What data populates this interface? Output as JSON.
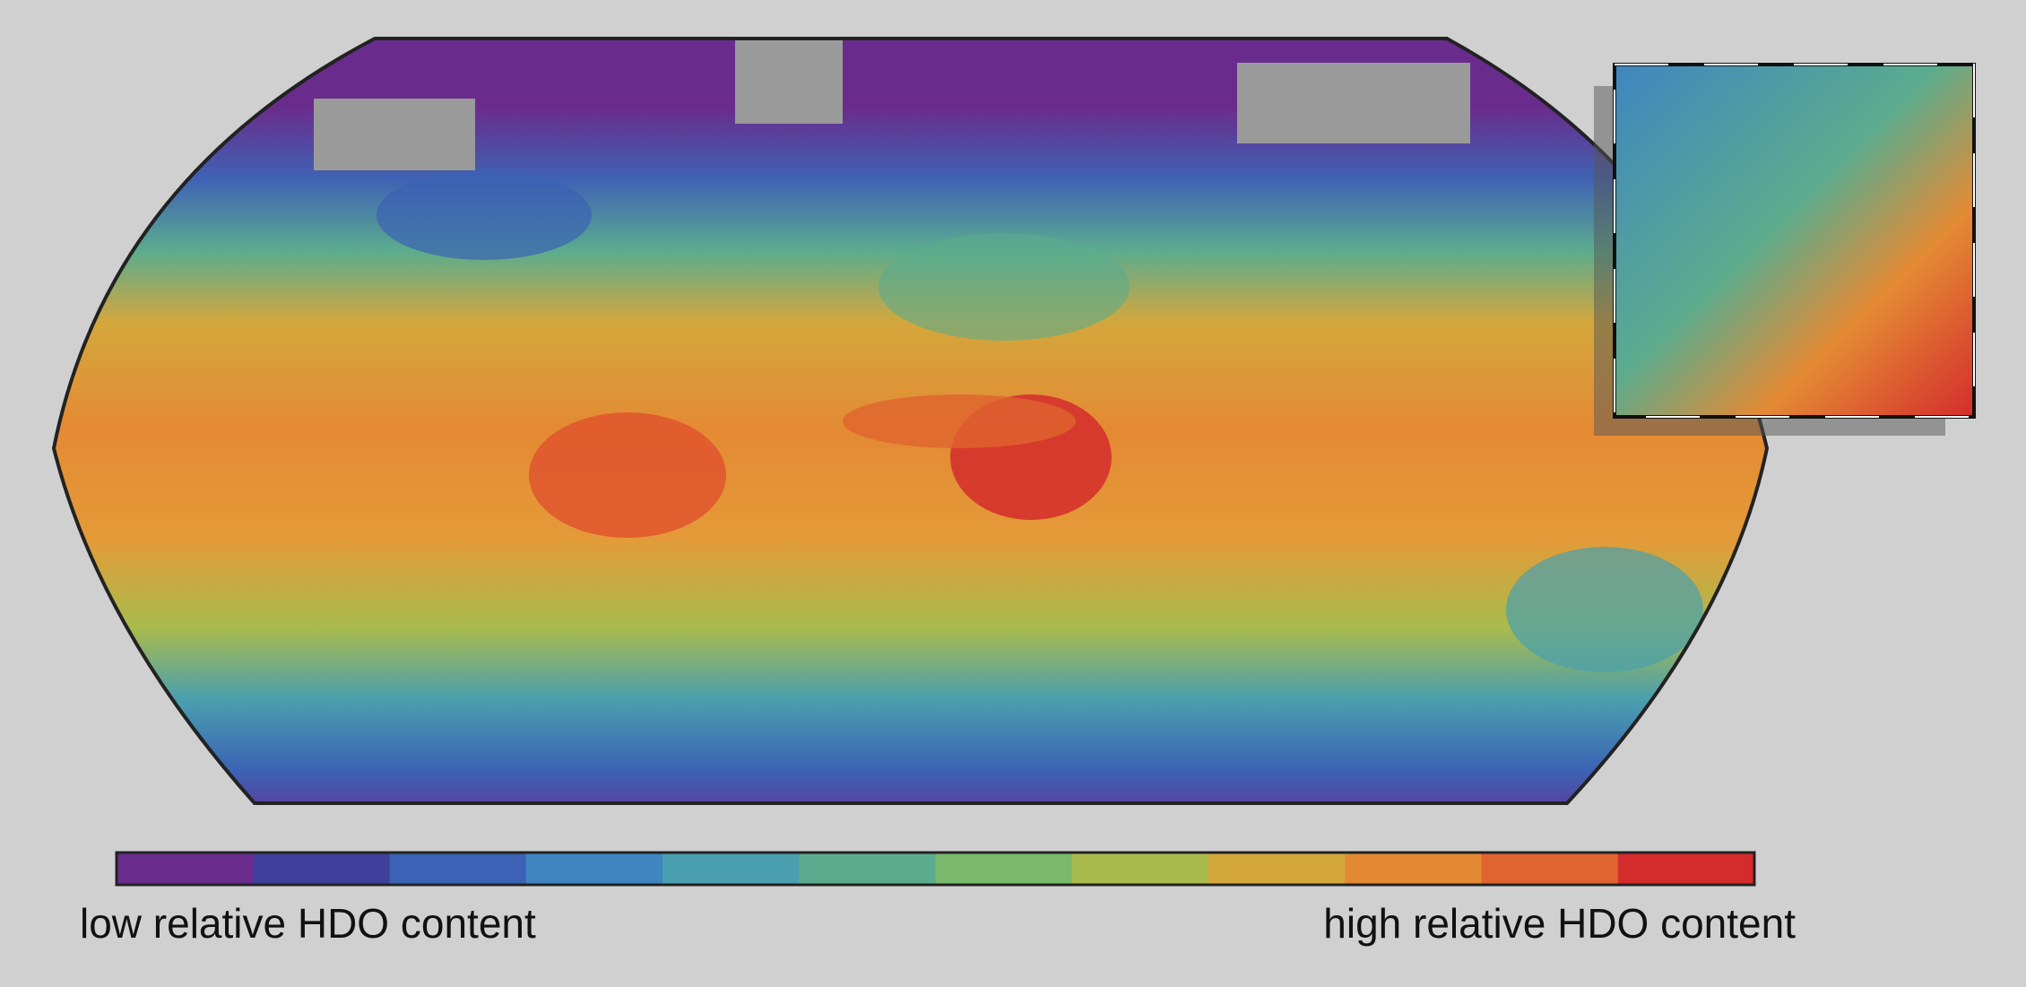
{
  "legend": {
    "low_label": "low relative HDO content",
    "high_label": "high relative HDO content",
    "colors": [
      "#6a2c8c",
      "#3f3f9c",
      "#3b62b4",
      "#3f86c0",
      "#4a9fae",
      "#5bac8e",
      "#7ab96c",
      "#a9bb4c",
      "#d4a73c",
      "#e48a34",
      "#e06430",
      "#d42c2c"
    ]
  }
}
